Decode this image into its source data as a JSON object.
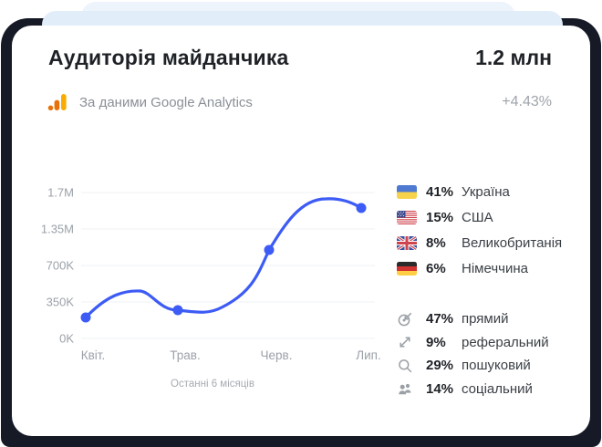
{
  "header": {
    "title": "Аудиторія майданчика",
    "value": "1.2 млн",
    "source_label": "За даними Google Analytics",
    "delta": "+4.43%"
  },
  "chart_data": {
    "type": "line",
    "title": "",
    "x_labels": [
      "Квіт.",
      "Трав.",
      "Черв.",
      "Лип."
    ],
    "values": [
      200000,
      270000,
      980000,
      1550000
    ],
    "y_ticks": [
      {
        "label": "0K",
        "value": 0
      },
      {
        "label": "350K",
        "value": 350000
      },
      {
        "label": "700K",
        "value": 700000
      },
      {
        "label": "1.35M",
        "value": 1350000
      },
      {
        "label": "1.7M",
        "value": 1700000
      }
    ],
    "caption": "Останні 6 місяців",
    "grid": true,
    "legend_position": "none",
    "line_color": "#3D5BF5",
    "grid_color": "#EFF1F4",
    "axis_label_color": "#9BA1A9"
  },
  "countries": [
    {
      "flag": "flag-ukraine",
      "percent": "41%",
      "name": "Україна"
    },
    {
      "flag": "flag-usa",
      "percent": "15%",
      "name": "США"
    },
    {
      "flag": "flag-uk",
      "percent": "8%",
      "name": "Великобританія"
    },
    {
      "flag": "flag-germany",
      "percent": "6%",
      "name": "Німеччина"
    }
  ],
  "sources": [
    {
      "icon": "target-icon",
      "percent": "47%",
      "name": "прямий"
    },
    {
      "icon": "referral-arrows-icon",
      "percent": "9%",
      "name": "реферальний"
    },
    {
      "icon": "search-icon",
      "percent": "29%",
      "name": "пошуковий"
    },
    {
      "icon": "social-users-icon",
      "percent": "14%",
      "name": "соціальний"
    }
  ],
  "colors": {
    "navy_backdrop": "#161A27",
    "stacked_card_back": "#EEF4FC",
    "stacked_card_front": "#E2EDFA",
    "card_bg": "#FFFFFF",
    "accent_blue": "#3D5BF5",
    "ga_orange": "#E8710A",
    "ga_amber": "#F9AB00",
    "muted_text": "#9AA0A6"
  }
}
